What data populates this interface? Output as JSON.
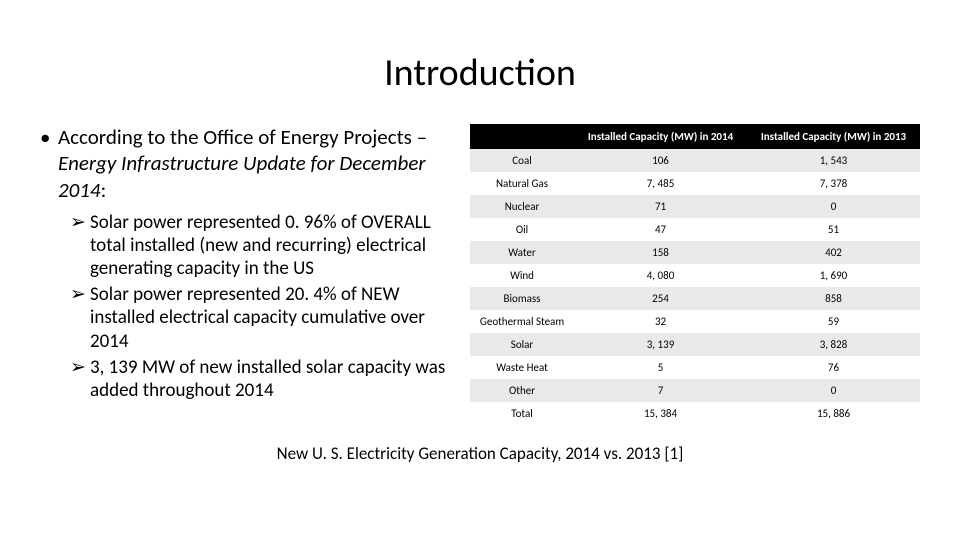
{
  "title": "Introduction",
  "mainBullet": {
    "prefix": "According to the Office of Energy Projects – ",
    "italicPart": "Energy Infrastructure Update for December 2014",
    "suffix": ":"
  },
  "subBullets": [
    "Solar power represented 0. 96% of OVERALL total installed (new and recurring) electrical generating capacity in the US",
    "Solar power represented 20. 4% of NEW installed electrical capacity cumulative over 2014",
    "3, 139 MW of new installed solar capacity was added throughout 2014"
  ],
  "table": {
    "headers": [
      "",
      "Installed Capacity (MW) in 2014",
      "Installed Capacity (MW) in 2013"
    ],
    "rows": [
      [
        "Coal",
        "106",
        "1, 543"
      ],
      [
        "Natural Gas",
        "7, 485",
        "7, 378"
      ],
      [
        "Nuclear",
        "71",
        "0"
      ],
      [
        "Oil",
        "47",
        "51"
      ],
      [
        "Water",
        "158",
        "402"
      ],
      [
        "Wind",
        "4, 080",
        "1, 690"
      ],
      [
        "Biomass",
        "254",
        "858"
      ],
      [
        "Geothermal Steam",
        "32",
        "59"
      ],
      [
        "Solar",
        "3, 139",
        "3, 828"
      ],
      [
        "Waste Heat",
        "5",
        "76"
      ],
      [
        "Other",
        "7",
        "0"
      ],
      [
        "Total",
        "15, 384",
        "15, 886"
      ]
    ]
  },
  "caption": "New U. S. Electricity Generation Capacity, 2014 vs. 2013 [1]",
  "colors": {
    "headerBg": "#000000",
    "headerText": "#ffffff",
    "rowOdd": "#e9e9e9",
    "rowEven": "#ffffff",
    "pageBg": "#ffffff",
    "text": "#000000"
  },
  "fonts": {
    "title_pt": 38,
    "body_pt": 21,
    "sub_pt": 19,
    "table_pt": 11,
    "caption_pt": 17
  }
}
